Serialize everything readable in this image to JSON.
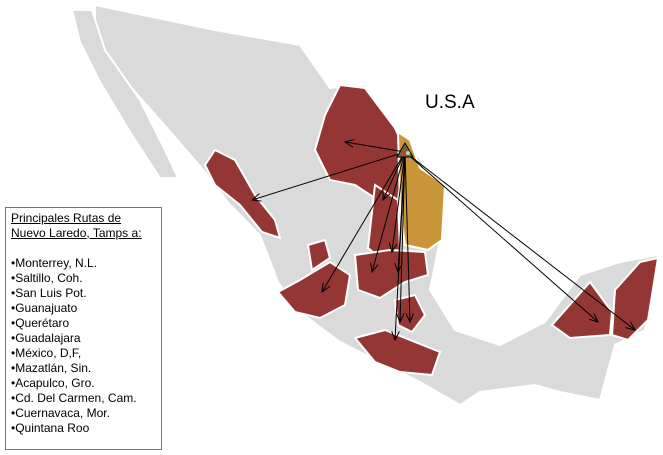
{
  "map": {
    "country_label": "U.S.A",
    "colors": {
      "land": "#dadada",
      "route_state": "#943634",
      "origin_state": "#c9973a",
      "border": "#ffffff",
      "arrow": "#000000"
    },
    "origin_icon": "triangle-marker-icon"
  },
  "legend": {
    "title_line1": "Principales Rutas de",
    "title_line2": "Nuevo Laredo, Tamps a:",
    "items": [
      "•Monterrey, N.L.",
      "•Saltillo, Coh.",
      "•San Luis Pot.",
      "•Guanajuato",
      "•Querétaro",
      "•Guadalajara",
      "•México, D,F,",
      "•Mazatlán, Sin.",
      "•Acapulco, Gro.",
      "•Cd. Del Carmen, Cam.",
      "•Cuernavaca, Mor.",
      "•Quintana Roo"
    ]
  }
}
